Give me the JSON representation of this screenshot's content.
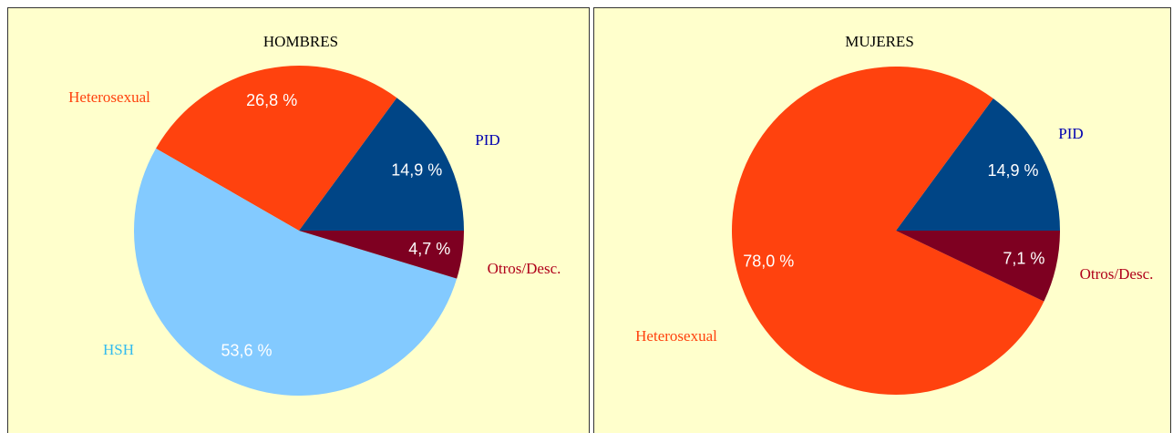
{
  "chart_data": [
    {
      "type": "pie",
      "title": "HOMBRES",
      "categories": [
        "PID",
        "Heterosexual",
        "HSH",
        "Otros/Desc."
      ],
      "values": [
        14.9,
        26.8,
        53.6,
        4.7
      ],
      "value_labels": [
        "14,9 %",
        "26,8 %",
        "53,6 %",
        "4,7 %"
      ],
      "colors": [
        "#004586",
        "#ff420e",
        "#83caff",
        "#7e0021"
      ]
    },
    {
      "type": "pie",
      "title": "MUJERES",
      "categories": [
        "PID",
        "Heterosexual",
        "Otros/Desc."
      ],
      "values": [
        14.9,
        78.0,
        7.1
      ],
      "value_labels": [
        "14,9 %",
        "78,0 %",
        "7,1 %"
      ],
      "colors": [
        "#004586",
        "#ff420e",
        "#7e0021"
      ]
    }
  ]
}
